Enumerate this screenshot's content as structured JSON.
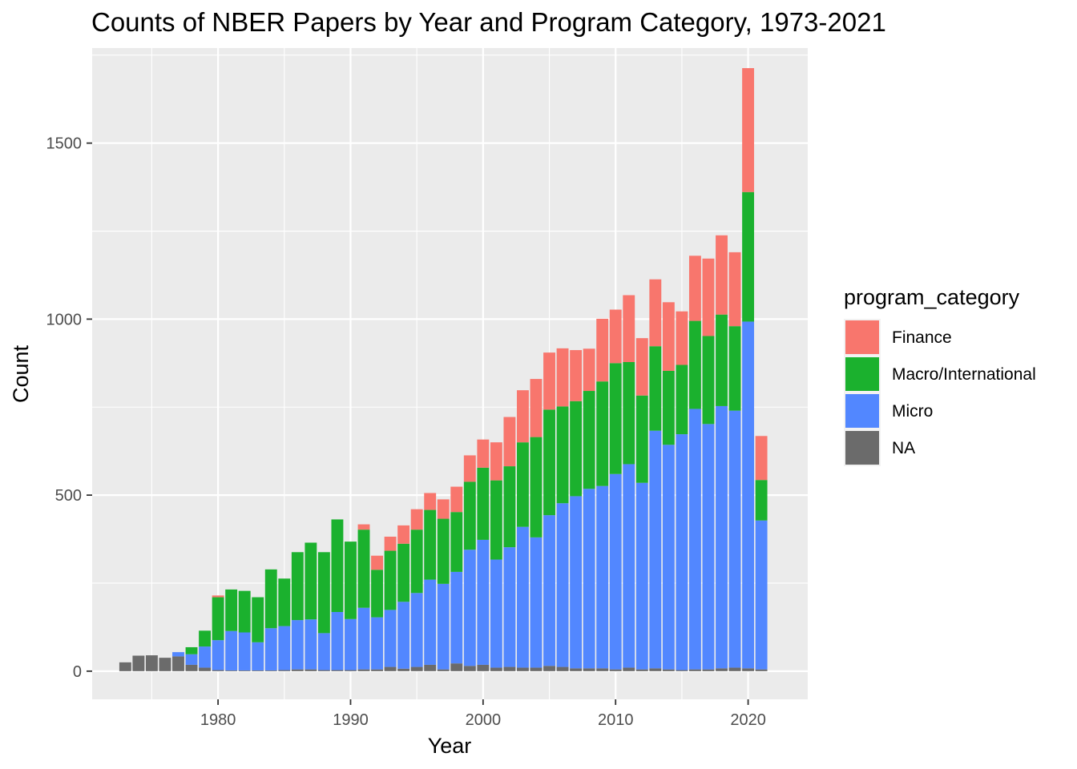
{
  "chart_data": {
    "type": "bar",
    "stacked": true,
    "title": "Counts of NBER Papers by Year and Program Category, 1973-2021",
    "xlabel": "Year",
    "ylabel": "Count",
    "xlim": [
      1970.5,
      2024.5
    ],
    "ylim": [
      -80,
      1770
    ],
    "x_ticks": [
      1980,
      1990,
      2000,
      2010,
      2020
    ],
    "y_ticks": [
      0,
      500,
      1000,
      1500
    ],
    "grid": true,
    "legend": {
      "title": "program_category",
      "position": "right"
    },
    "colors": {
      "Finance": "#F8766D",
      "Macro/International": "#1BB12E",
      "Micro": "#5287FF",
      "NA": "#6B6B6B"
    },
    "stack_order_bottom_to_top": [
      "NA",
      "Micro",
      "Macro/International",
      "Finance"
    ],
    "x": [
      1973,
      1974,
      1975,
      1976,
      1977,
      1978,
      1979,
      1980,
      1981,
      1982,
      1983,
      1984,
      1985,
      1986,
      1987,
      1988,
      1989,
      1990,
      1991,
      1992,
      1993,
      1994,
      1995,
      1996,
      1997,
      1998,
      1999,
      2000,
      2001,
      2002,
      2003,
      2004,
      2005,
      2006,
      2007,
      2008,
      2009,
      2010,
      2011,
      2012,
      2013,
      2014,
      2015,
      2016,
      2017,
      2018,
      2019,
      2020,
      2021
    ],
    "series": [
      {
        "name": "NA",
        "values": [
          25,
          44,
          45,
          38,
          42,
          18,
          10,
          3,
          2,
          2,
          2,
          2,
          3,
          5,
          5,
          3,
          3,
          3,
          5,
          5,
          12,
          7,
          12,
          18,
          5,
          22,
          15,
          18,
          10,
          12,
          10,
          10,
          15,
          12,
          8,
          8,
          8,
          5,
          10,
          5,
          8,
          5,
          3,
          5,
          5,
          8,
          10,
          8,
          5
        ]
      },
      {
        "name": "Micro",
        "values": [
          0,
          0,
          0,
          0,
          12,
          30,
          60,
          85,
          112,
          108,
          80,
          120,
          125,
          140,
          142,
          105,
          165,
          145,
          175,
          148,
          162,
          190,
          210,
          242,
          243,
          260,
          330,
          355,
          307,
          340,
          400,
          370,
          428,
          465,
          489,
          510,
          518,
          555,
          578,
          530,
          675,
          638,
          670,
          740,
          697,
          745,
          730,
          985,
          423
        ]
      },
      {
        "name": "Macro/International",
        "values": [
          0,
          0,
          0,
          0,
          0,
          20,
          45,
          122,
          118,
          118,
          128,
          167,
          135,
          193,
          218,
          230,
          263,
          220,
          222,
          135,
          168,
          165,
          180,
          198,
          185,
          170,
          193,
          205,
          225,
          230,
          240,
          285,
          300,
          275,
          270,
          278,
          297,
          315,
          290,
          248,
          240,
          210,
          197,
          250,
          250,
          260,
          240,
          368,
          115
        ]
      },
      {
        "name": "Finance",
        "values": [
          0,
          0,
          0,
          0,
          0,
          0,
          0,
          5,
          0,
          0,
          0,
          0,
          0,
          0,
          0,
          0,
          0,
          0,
          15,
          40,
          40,
          52,
          58,
          48,
          55,
          72,
          75,
          80,
          108,
          140,
          148,
          165,
          162,
          165,
          145,
          120,
          178,
          152,
          190,
          163,
          190,
          195,
          152,
          185,
          220,
          225,
          210,
          352,
          125
        ]
      }
    ]
  }
}
